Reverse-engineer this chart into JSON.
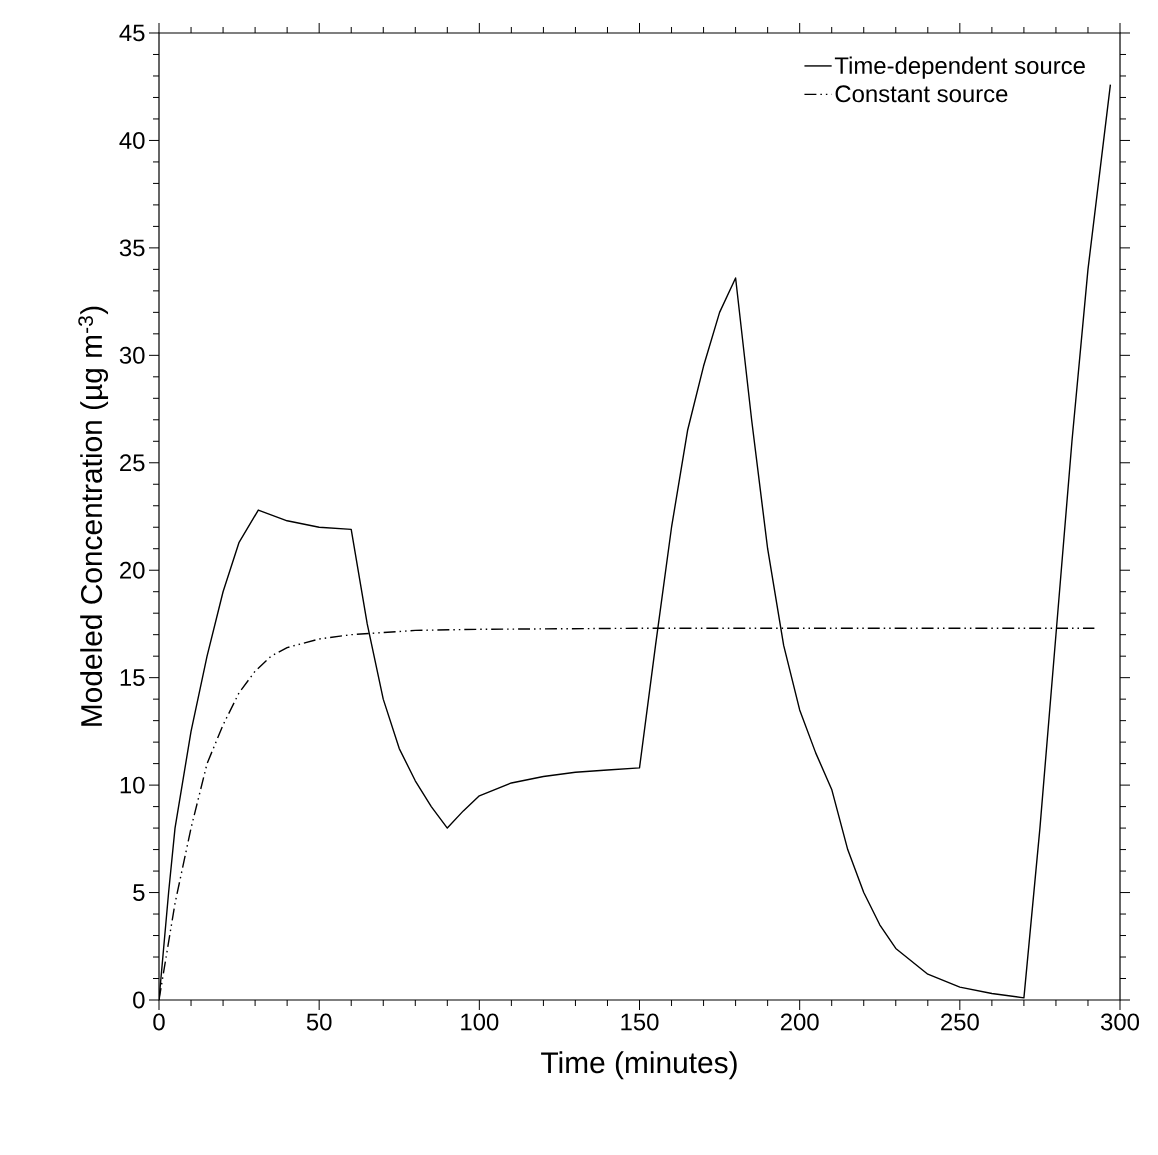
{
  "chart_data": {
    "type": "line",
    "xlabel": "Time (minutes)",
    "ylabel": "Modeled Concentration (µg m$^{-3}$)",
    "xlim": [
      0,
      300
    ],
    "ylim": [
      0,
      45
    ],
    "xticks": [
      0,
      50,
      100,
      150,
      200,
      250,
      300
    ],
    "yticks": [
      0,
      5,
      10,
      15,
      20,
      25,
      30,
      35,
      40,
      45
    ],
    "legend": "top right",
    "grid": false,
    "series": [
      {
        "name": "Time-dependent source",
        "color": "#000000",
        "line_style": "solid",
        "x": [
          0,
          3,
          5,
          10,
          15,
          20,
          25,
          31,
          40,
          50,
          60,
          65,
          70,
          75,
          80,
          85,
          90,
          95,
          100,
          110,
          120,
          130,
          140,
          150,
          155,
          160,
          165,
          170,
          175,
          180,
          185,
          190,
          195,
          200,
          205,
          210,
          215,
          220,
          225,
          230,
          240,
          250,
          260,
          270,
          275,
          280,
          285,
          290,
          297
        ],
        "values": [
          0,
          5,
          8,
          12.5,
          16,
          19,
          21.3,
          22.8,
          22.3,
          22.0,
          21.9,
          17.5,
          14,
          11.7,
          10.2,
          9,
          8.0,
          8.8,
          9.5,
          10.1,
          10.4,
          10.6,
          10.7,
          10.8,
          16.5,
          22,
          26.5,
          29.5,
          32,
          33.6,
          27,
          21,
          16.5,
          13.5,
          11.5,
          9.8,
          7,
          5,
          3.5,
          2.4,
          1.2,
          0.6,
          0.3,
          0.1,
          8,
          17,
          26,
          34,
          42.6
        ]
      },
      {
        "name": "Constant source",
        "color": "#000000",
        "line_style": "dashdotdotted",
        "x": [
          0,
          5,
          10,
          15,
          20,
          25,
          30,
          35,
          40,
          50,
          60,
          70,
          80,
          100,
          150,
          200,
          250,
          292
        ],
        "values": [
          0,
          4.5,
          8,
          11,
          12.8,
          14.3,
          15.3,
          16,
          16.4,
          16.8,
          17.0,
          17.1,
          17.2,
          17.25,
          17.3,
          17.3,
          17.3,
          17.3
        ]
      }
    ]
  }
}
